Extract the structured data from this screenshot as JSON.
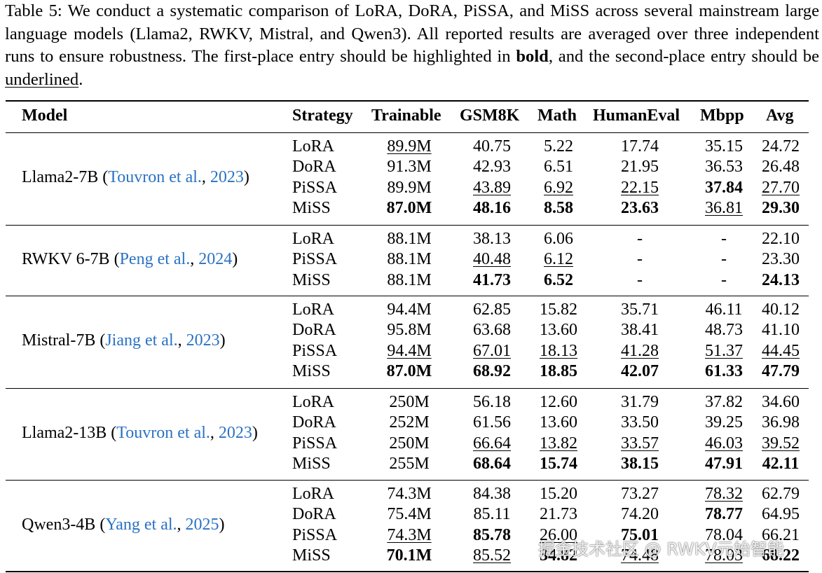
{
  "caption": {
    "lead": "Table 5: We conduct a systematic comparison of LoRA, DoRA, PiSSA, and MiSS across several mainstream large language models (Llama2, RWKV, Mistral, and Qwen3). All reported results are averaged over three independent runs to ensure robustness. The first-place entry should be highlighted in ",
    "bold_word": "bold",
    "middle": ", and the second-place entry should be ",
    "underline_word": "underlined",
    "end": "."
  },
  "headers": [
    "Model",
    "Strategy",
    "Trainable",
    "GSM8K",
    "Math",
    "HumanEval",
    "Mbpp",
    "Avg"
  ],
  "groups": [
    {
      "model": "Llama2-7B",
      "cite_author": "Touvron et al.",
      "cite_year": "2023",
      "rows": [
        {
          "strategy": "LoRA",
          "trainable": "89.9M",
          "gsm8k": "40.75",
          "math": "5.22",
          "humaneval": "17.74",
          "mbpp": "35.15",
          "avg": "24.72"
        },
        {
          "strategy": "DoRA",
          "trainable": "91.3M",
          "gsm8k": "42.93",
          "math": "6.51",
          "humaneval": "21.95",
          "mbpp": "36.53",
          "avg": "26.48"
        },
        {
          "strategy": "PiSSA",
          "trainable": "89.9M",
          "gsm8k": "43.89",
          "math": "6.92",
          "humaneval": "22.15",
          "mbpp": "37.84",
          "avg": "27.70"
        },
        {
          "strategy": "MiSS",
          "trainable": "87.0M",
          "gsm8k": "48.16",
          "math": "8.58",
          "humaneval": "23.63",
          "mbpp": "36.81",
          "avg": "29.30"
        }
      ]
    },
    {
      "model": "RWKV 6-7B",
      "cite_author": "Peng et al.",
      "cite_year": "2024",
      "rows": [
        {
          "strategy": "LoRA",
          "trainable": "88.1M",
          "gsm8k": "38.13",
          "math": "6.06",
          "humaneval": "-",
          "mbpp": "-",
          "avg": "22.10"
        },
        {
          "strategy": "PiSSA",
          "trainable": "88.1M",
          "gsm8k": "40.48",
          "math": "6.12",
          "humaneval": "-",
          "mbpp": "-",
          "avg": "23.30"
        },
        {
          "strategy": "MiSS",
          "trainable": "88.1M",
          "gsm8k": "41.73",
          "math": "6.52",
          "humaneval": "-",
          "mbpp": "-",
          "avg": "24.13"
        }
      ]
    },
    {
      "model": "Mistral-7B",
      "cite_author": "Jiang et al.",
      "cite_year": "2023",
      "rows": [
        {
          "strategy": "LoRA",
          "trainable": "94.4M",
          "gsm8k": "62.85",
          "math": "15.82",
          "humaneval": "35.71",
          "mbpp": "46.11",
          "avg": "40.12"
        },
        {
          "strategy": "DoRA",
          "trainable": "95.8M",
          "gsm8k": "63.68",
          "math": "13.60",
          "humaneval": "38.41",
          "mbpp": "48.73",
          "avg": "41.10"
        },
        {
          "strategy": "PiSSA",
          "trainable": "94.4M",
          "gsm8k": "67.01",
          "math": "18.13",
          "humaneval": "41.28",
          "mbpp": "51.37",
          "avg": "44.45"
        },
        {
          "strategy": "MiSS",
          "trainable": "87.0M",
          "gsm8k": "68.92",
          "math": "18.85",
          "humaneval": "42.07",
          "mbpp": "61.33",
          "avg": "47.79"
        }
      ]
    },
    {
      "model": "Llama2-13B",
      "cite_author": "Touvron et al.",
      "cite_year": "2023",
      "rows": [
        {
          "strategy": "LoRA",
          "trainable": "250M",
          "gsm8k": "56.18",
          "math": "12.60",
          "humaneval": "31.79",
          "mbpp": "37.82",
          "avg": "34.60"
        },
        {
          "strategy": "DoRA",
          "trainable": "252M",
          "gsm8k": "61.56",
          "math": "13.60",
          "humaneval": "33.50",
          "mbpp": "39.25",
          "avg": "36.98"
        },
        {
          "strategy": "PiSSA",
          "trainable": "250M",
          "gsm8k": "66.64",
          "math": "13.82",
          "humaneval": "33.57",
          "mbpp": "46.03",
          "avg": "39.52"
        },
        {
          "strategy": "MiSS",
          "trainable": "255M",
          "gsm8k": "68.64",
          "math": "15.74",
          "humaneval": "38.15",
          "mbpp": "47.91",
          "avg": "42.11"
        }
      ]
    },
    {
      "model": "Qwen3-4B",
      "cite_author": "Yang et al.",
      "cite_year": "2025",
      "rows": [
        {
          "strategy": "LoRA",
          "trainable": "74.3M",
          "gsm8k": "84.38",
          "math": "15.20",
          "humaneval": "73.27",
          "mbpp": "78.32",
          "avg": "62.79"
        },
        {
          "strategy": "DoRA",
          "trainable": "75.4M",
          "gsm8k": "85.11",
          "math": "21.73",
          "humaneval": "74.20",
          "mbpp": "78.77",
          "avg": "64.95"
        },
        {
          "strategy": "PiSSA",
          "trainable": "74.3M",
          "gsm8k": "85.78",
          "math": "26.00",
          "humaneval": "75.01",
          "mbpp": "78.04",
          "avg": "66.21"
        },
        {
          "strategy": "MiSS",
          "trainable": "70.1M",
          "gsm8k": "85.52",
          "math": "34.82",
          "humaneval": "74.48",
          "mbpp": "78.03",
          "avg": "68.22"
        }
      ]
    }
  ],
  "emphasis": {
    "bold": [
      "0.3.trainable",
      "0.3.gsm8k",
      "0.3.math",
      "0.3.humaneval",
      "0.2.mbpp",
      "0.3.avg",
      "1.2.gsm8k",
      "1.2.math",
      "1.2.avg",
      "2.3.trainable",
      "2.3.gsm8k",
      "2.3.math",
      "2.3.humaneval",
      "2.3.mbpp",
      "2.3.avg",
      "3.3.gsm8k",
      "3.3.math",
      "3.3.humaneval",
      "3.3.mbpp",
      "3.3.avg",
      "4.3.trainable",
      "4.2.gsm8k",
      "4.3.math",
      "4.2.humaneval",
      "4.1.mbpp",
      "4.3.avg"
    ],
    "underline": [
      "0.0.trainable",
      "0.2.gsm8k",
      "0.2.math",
      "0.2.humaneval",
      "0.3.mbpp",
      "0.2.avg",
      "1.1.gsm8k",
      "1.1.math",
      "2.2.trainable",
      "2.2.gsm8k",
      "2.2.math",
      "2.2.humaneval",
      "2.2.mbpp",
      "2.2.avg",
      "3.2.gsm8k",
      "3.2.math",
      "3.2.humaneval",
      "3.2.mbpp",
      "3.2.avg",
      "4.2.trainable",
      "4.3.gsm8k",
      "4.2.math",
      "4.3.humaneval",
      "4.0.mbpp",
      "4.3.mbpp"
    ]
  },
  "watermark": "掘金技术社区 @ RWKV元始智能"
}
